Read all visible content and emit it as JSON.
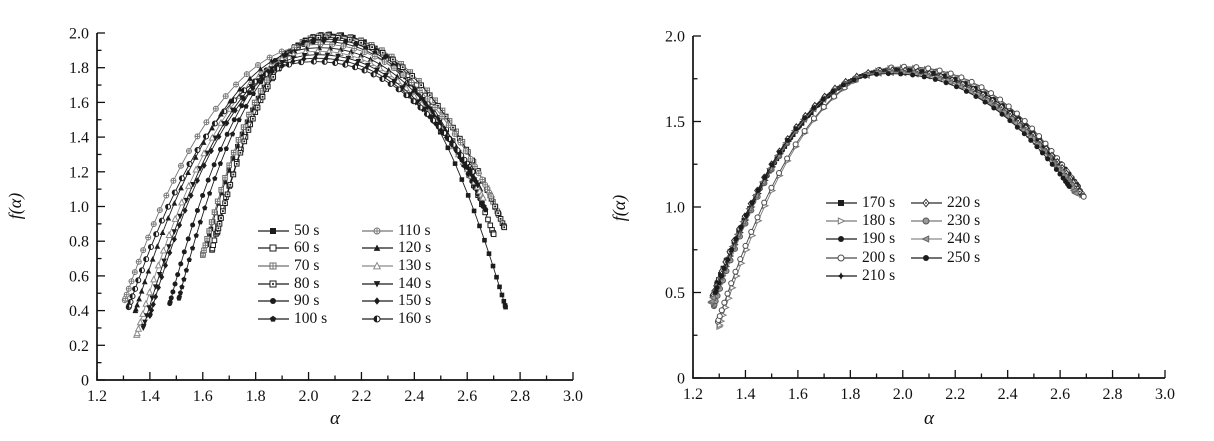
{
  "page": {
    "background": "#ffffff"
  },
  "chart_data": [
    {
      "type": "line",
      "panel": "left",
      "title": "",
      "xlabel": "α",
      "ylabel": "f(α)",
      "xlim": [
        1.2,
        3.0
      ],
      "ylim": [
        0,
        2.0
      ],
      "grid": false,
      "x_major_ticks": [
        1.2,
        1.4,
        1.6,
        1.8,
        2.0,
        2.2,
        2.4,
        2.6,
        2.8,
        3.0
      ],
      "x_major_labels": [
        "1.2",
        "1.4",
        "1.6",
        "1.8",
        "2.0",
        "2.2",
        "2.4",
        "2.6",
        "2.8",
        "3.0"
      ],
      "x_minor_ticks": [
        1.3,
        1.5,
        1.7,
        1.9,
        2.1,
        2.3,
        2.5,
        2.7,
        2.9
      ],
      "y_major_ticks": [
        0,
        0.2,
        0.4,
        0.6,
        0.8,
        1.0,
        1.2,
        1.4,
        1.6,
        1.8,
        2.0
      ],
      "y_major_labels": [
        "0",
        "0.2",
        "0.4",
        "0.6",
        "0.8",
        "1.0",
        "1.2",
        "1.4",
        "1.6",
        "1.8",
        "2.0"
      ],
      "y_minor_ticks": [
        0.1,
        0.3,
        0.5,
        0.7,
        0.9,
        1.1,
        1.3,
        1.5,
        1.7,
        1.9
      ],
      "legend": {
        "position": "inside-lower-middle",
        "columns": 2
      },
      "series": [
        {
          "label": "50 s",
          "marker": "square-filled",
          "color": "#1c1c1c",
          "curve": {
            "alpha_min": 1.615,
            "f_at_min": 0.78,
            "alpha_peak": 2.08,
            "f_peak": 1.995,
            "alpha_max": 2.745,
            "f_at_max": 0.42
          }
        },
        {
          "label": "60 s",
          "marker": "square-open",
          "color": "#1c1c1c",
          "curve": {
            "alpha_min": 1.635,
            "f_at_min": 0.75,
            "alpha_peak": 2.075,
            "f_peak": 1.99,
            "alpha_max": 2.7,
            "f_at_max": 0.84
          }
        },
        {
          "label": "70 s",
          "marker": "square-cross",
          "color": "#6f6f6f",
          "curve": {
            "alpha_min": 1.6,
            "f_at_min": 0.72,
            "alpha_peak": 2.07,
            "f_peak": 1.985,
            "alpha_max": 2.72,
            "f_at_max": 0.95
          }
        },
        {
          "label": "80 s",
          "marker": "square-dot",
          "color": "#1c1c1c",
          "curve": {
            "alpha_min": 1.655,
            "f_at_min": 0.85,
            "alpha_peak": 2.065,
            "f_peak": 1.975,
            "alpha_max": 2.74,
            "f_at_max": 0.88
          }
        },
        {
          "label": "90 s",
          "marker": "circle-filled",
          "color": "#1c1c1c",
          "curve": {
            "alpha_min": 1.475,
            "f_at_min": 0.44,
            "alpha_peak": 2.06,
            "f_peak": 1.965,
            "alpha_max": 2.66,
            "f_at_max": 1.0
          }
        },
        {
          "label": "100 s",
          "marker": "pentagon-filled",
          "color": "#1c1c1c",
          "curve": {
            "alpha_min": 1.51,
            "f_at_min": 0.47,
            "alpha_peak": 2.055,
            "f_peak": 1.95,
            "alpha_max": 2.67,
            "f_at_max": 0.98
          }
        },
        {
          "label": "110 s",
          "marker": "circle-plus",
          "color": "#767676",
          "curve": {
            "alpha_min": 1.305,
            "f_at_min": 0.46,
            "alpha_peak": 2.045,
            "f_peak": 1.935,
            "alpha_max": 2.69,
            "f_at_max": 1.06
          }
        },
        {
          "label": "120 s",
          "marker": "triangle-up-filled",
          "color": "#1c1c1c",
          "curve": {
            "alpha_min": 1.345,
            "f_at_min": 0.4,
            "alpha_peak": 2.04,
            "f_peak": 1.915,
            "alpha_max": 2.65,
            "f_at_max": 1.1
          }
        },
        {
          "label": "130 s",
          "marker": "triangle-up-open",
          "color": "#8a8a8a",
          "curve": {
            "alpha_min": 1.35,
            "f_at_min": 0.26,
            "alpha_peak": 2.035,
            "f_peak": 1.895,
            "alpha_max": 2.66,
            "f_at_max": 1.05
          }
        },
        {
          "label": "140 s",
          "marker": "triangle-down-filled",
          "color": "#1c1c1c",
          "curve": {
            "alpha_min": 1.375,
            "f_at_min": 0.3,
            "alpha_peak": 2.03,
            "f_peak": 1.875,
            "alpha_max": 2.64,
            "f_at_max": 1.12
          }
        },
        {
          "label": "150 s",
          "marker": "diamond-filled",
          "color": "#1c1c1c",
          "curve": {
            "alpha_min": 1.4,
            "f_at_min": 0.37,
            "alpha_peak": 2.025,
            "f_peak": 1.855,
            "alpha_max": 2.63,
            "f_at_max": 1.15
          }
        },
        {
          "label": "160 s",
          "marker": "circle-half",
          "color": "#1c1c1c",
          "curve": {
            "alpha_min": 1.32,
            "f_at_min": 0.42,
            "alpha_peak": 2.02,
            "f_peak": 1.835,
            "alpha_max": 2.62,
            "f_at_max": 1.2
          }
        }
      ]
    },
    {
      "type": "line",
      "panel": "right",
      "title": "",
      "xlabel": "α",
      "ylabel": "f(α)",
      "xlim": [
        1.2,
        3.0
      ],
      "ylim": [
        0,
        2.0
      ],
      "grid": false,
      "x_major_ticks": [
        1.2,
        1.4,
        1.6,
        1.8,
        2.0,
        2.2,
        2.4,
        2.6,
        2.8,
        3.0
      ],
      "x_major_labels": [
        "1.2",
        "1.4",
        "1.6",
        "1.8",
        "2.0",
        "2.2",
        "2.4",
        "2.6",
        "2.8",
        "3.0"
      ],
      "x_minor_ticks": [
        1.3,
        1.5,
        1.7,
        1.9,
        2.1,
        2.3,
        2.5,
        2.7,
        2.9
      ],
      "y_major_ticks": [
        0,
        0.5,
        1.0,
        1.5,
        2.0
      ],
      "y_major_labels": [
        "0",
        "0.5",
        "1.0",
        "1.5",
        "2.0"
      ],
      "y_minor_ticks": [
        0.25,
        0.75,
        1.25,
        1.75
      ],
      "legend": {
        "position": "inside-lower-middle",
        "columns": 2
      },
      "series": [
        {
          "label": "170 s",
          "marker": "square-filled",
          "color": "#1c1c1c",
          "curve": {
            "alpha_min": 1.29,
            "f_at_min": 0.55,
            "alpha_peak": 1.99,
            "f_peak": 1.805,
            "alpha_max": 2.665,
            "f_at_max": 1.1
          }
        },
        {
          "label": "180 s",
          "marker": "triangle-right-open",
          "color": "#7a7a7a",
          "curve": {
            "alpha_min": 1.3,
            "f_at_min": 0.3,
            "alpha_peak": 2.0,
            "f_peak": 1.815,
            "alpha_max": 2.685,
            "f_at_max": 1.07
          }
        },
        {
          "label": "190 s",
          "marker": "circle-filled",
          "color": "#1c1c1c",
          "curve": {
            "alpha_min": 1.285,
            "f_at_min": 0.5,
            "alpha_peak": 1.975,
            "f_peak": 1.8,
            "alpha_max": 2.67,
            "f_at_max": 1.12
          }
        },
        {
          "label": "200 s",
          "marker": "circle-open",
          "color": "#4a4a4a",
          "curve": {
            "alpha_min": 1.295,
            "f_at_min": 0.33,
            "alpha_peak": 2.005,
            "f_peak": 1.82,
            "alpha_max": 2.69,
            "f_at_max": 1.06
          }
        },
        {
          "label": "210 s",
          "marker": "star4-filled",
          "color": "#1c1c1c",
          "curve": {
            "alpha_min": 1.28,
            "f_at_min": 0.45,
            "alpha_peak": 1.965,
            "f_peak": 1.795,
            "alpha_max": 2.655,
            "f_at_max": 1.11
          }
        },
        {
          "label": "220 s",
          "marker": "diamond-open-dot",
          "color": "#2a2a2a",
          "curve": {
            "alpha_min": 1.275,
            "f_at_min": 0.48,
            "alpha_peak": 1.96,
            "f_peak": 1.8,
            "alpha_max": 2.675,
            "f_at_max": 1.09
          }
        },
        {
          "label": "230 s",
          "marker": "circle-gray",
          "color": "#777777",
          "curve": {
            "alpha_min": 1.28,
            "f_at_min": 0.42,
            "alpha_peak": 1.95,
            "f_peak": 1.79,
            "alpha_max": 2.645,
            "f_at_max": 1.13
          }
        },
        {
          "label": "240 s",
          "marker": "triangle-left-gray",
          "color": "#8a8a8a",
          "curve": {
            "alpha_min": 1.27,
            "f_at_min": 0.44,
            "alpha_peak": 1.955,
            "f_peak": 1.785,
            "alpha_max": 2.66,
            "f_at_max": 1.08
          }
        },
        {
          "label": "250 s",
          "marker": "circle-filled",
          "color": "#1c1c1c",
          "curve": {
            "alpha_min": 1.285,
            "f_at_min": 0.5,
            "alpha_peak": 1.945,
            "f_peak": 1.78,
            "alpha_max": 2.635,
            "f_at_max": 1.12
          }
        }
      ]
    }
  ]
}
